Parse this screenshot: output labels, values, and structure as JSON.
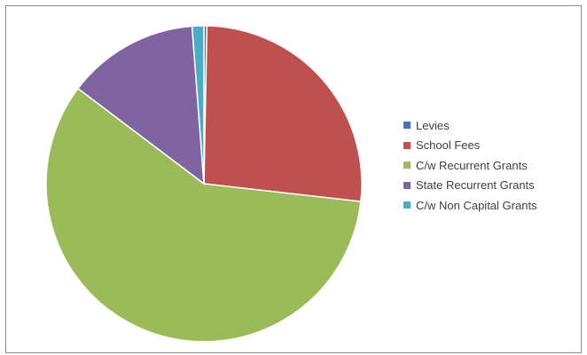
{
  "chart_data": {
    "type": "pie",
    "categories": [
      "Levies",
      "School Fees",
      "C/w Recurrent Grants",
      "State Recurrent Grants",
      "C/w Non Capital Grants"
    ],
    "values": [
      0.3,
      26.5,
      58.5,
      13.5,
      1.2
    ],
    "colors": [
      "#4472c4",
      "#c0504d",
      "#9bbb59",
      "#8064a2",
      "#4bacc6"
    ],
    "legend": "right",
    "title": ""
  }
}
